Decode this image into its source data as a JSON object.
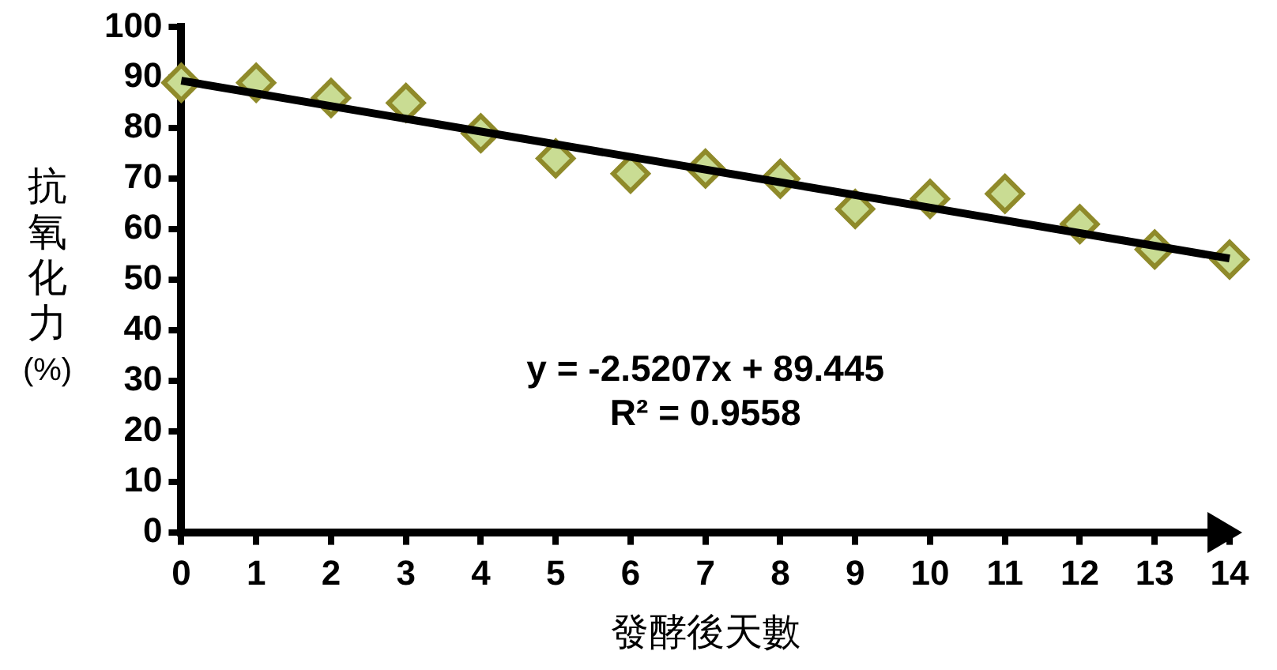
{
  "chart_data": {
    "type": "scatter",
    "xlabel": "發酵後天數",
    "ylabel": "抗氧化力(%)",
    "x": [
      0,
      1,
      2,
      3,
      4,
      5,
      6,
      7,
      8,
      9,
      10,
      11,
      12,
      13,
      14
    ],
    "series": [
      {
        "color": "#8f8a2a",
        "marker": "diamond",
        "values": [
          89,
          89,
          86,
          85,
          79,
          74,
          71,
          72,
          70,
          64,
          66,
          67,
          61,
          56,
          54
        ]
      },
      {
        "type": "line",
        "color": "#000000",
        "marker": "none",
        "x": [
          0,
          14
        ],
        "values": [
          89.4,
          54.2
        ]
      }
    ],
    "xlim": [
      0,
      14
    ],
    "xticks": [
      0,
      1,
      2,
      3,
      4,
      5,
      6,
      7,
      8,
      9,
      10,
      11,
      12,
      13,
      14
    ],
    "ylim": [
      0,
      100
    ],
    "yticks": [
      0,
      10,
      20,
      30,
      40,
      50,
      60,
      70,
      80,
      90,
      100
    ],
    "grid": false,
    "legend": false,
    "annotations": [
      "y = -2.5207x + 89.445",
      "R² = 0.9558"
    ]
  }
}
